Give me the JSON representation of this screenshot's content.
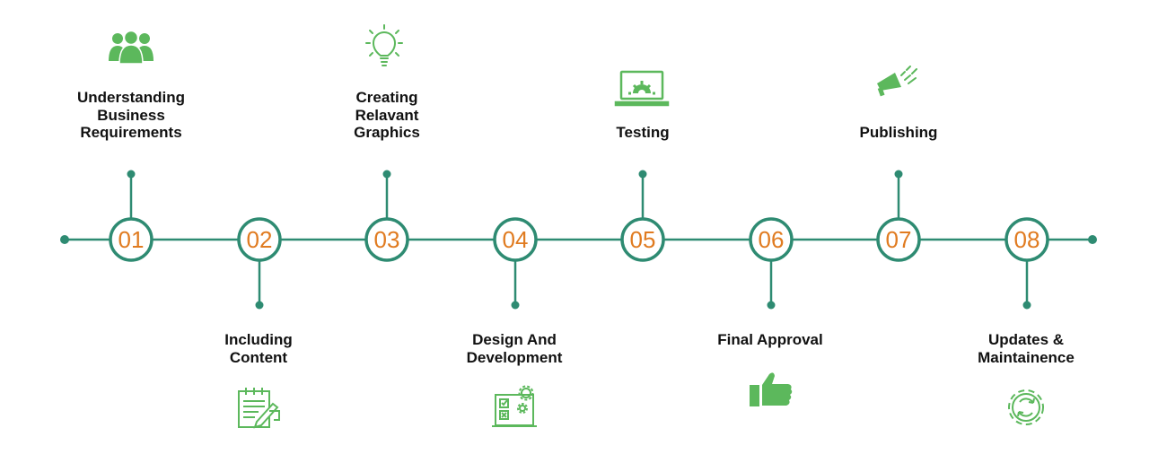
{
  "colors": {
    "line": "#2e8b72",
    "number": "#e07b20",
    "icon": "#5cb85c",
    "text": "#111111"
  },
  "steps": [
    {
      "number": "01",
      "label": "Understanding\nBusiness\nRequirements",
      "icon": "team-icon"
    },
    {
      "number": "02",
      "label": "Including\nContent",
      "icon": "content-writing-icon"
    },
    {
      "number": "03",
      "label": "Creating\nRelavant\nGraphics",
      "icon": "lightbulb-icon"
    },
    {
      "number": "04",
      "label": "Design And\nDevelopment",
      "icon": "design-checklist-gear-icon"
    },
    {
      "number": "05",
      "label": "Testing",
      "icon": "laptop-gear-icon"
    },
    {
      "number": "06",
      "label": "Final Approval",
      "icon": "thumbs-up-icon"
    },
    {
      "number": "07",
      "label": "Publishing",
      "icon": "megaphone-icon"
    },
    {
      "number": "08",
      "label": "Updates &\nMaintainence",
      "icon": "refresh-gear-icon"
    }
  ]
}
